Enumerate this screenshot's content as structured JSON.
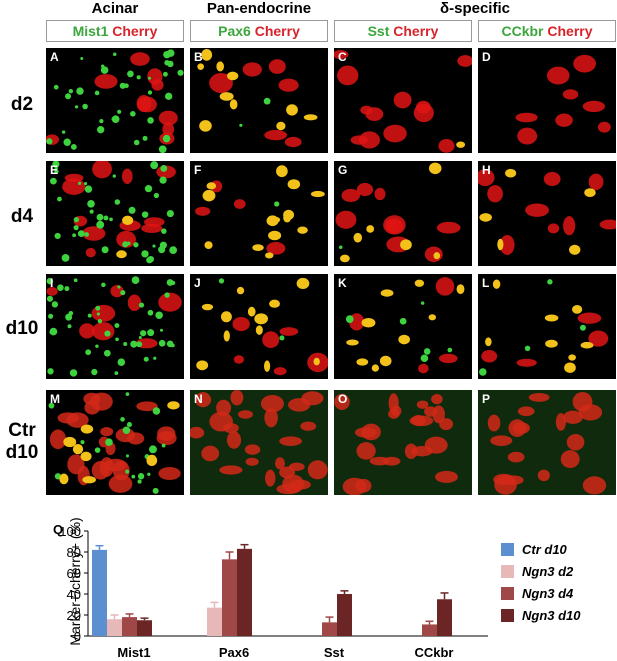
{
  "columns": [
    {
      "group": "Acinar",
      "marker": "Mist1",
      "reporter": "Cherry"
    },
    {
      "group": "Pan-endocrine",
      "marker": "Pax6",
      "reporter": "Cherry"
    },
    {
      "group": "",
      "marker": "Sst",
      "reporter": "Cherry"
    },
    {
      "group": "",
      "marker": "CCkbr",
      "reporter": "Cherry"
    }
  ],
  "group_span_label": "δ-specific",
  "rows": [
    "d2",
    "d4",
    "d10",
    "Ctr\nd10"
  ],
  "panel_letters": [
    "A",
    "B",
    "C",
    "D",
    "E",
    "F",
    "G",
    "H",
    "I",
    "J",
    "K",
    "L",
    "M",
    "N",
    "O",
    "P"
  ],
  "chart_label": "Q",
  "chart_data": {
    "type": "bar",
    "ylabel": "Marker+/cherry+ (%)",
    "ylim": [
      0,
      100
    ],
    "yticks": [
      0,
      20,
      40,
      60,
      80,
      100
    ],
    "categories": [
      "Mist1",
      "Pax6",
      "Sst",
      "CCkbr"
    ],
    "series": [
      {
        "name": "Ctr d10",
        "color": "#5b8fcf",
        "values": [
          82,
          null,
          null,
          null
        ],
        "errors": [
          4,
          null,
          null,
          null
        ]
      },
      {
        "name": "Ngn3 d2",
        "color": "#e6b8b8",
        "values": [
          16,
          27,
          null,
          null
        ],
        "errors": [
          4,
          5,
          null,
          null
        ]
      },
      {
        "name": "Ngn3 d4",
        "color": "#a04848",
        "values": [
          18,
          73,
          13,
          11
        ],
        "errors": [
          3,
          7,
          5,
          3
        ]
      },
      {
        "name": "Ngn3 d10",
        "color": "#6b2525",
        "values": [
          15,
          83,
          40,
          35
        ],
        "errors": [
          2,
          4,
          3,
          6
        ]
      }
    ]
  }
}
